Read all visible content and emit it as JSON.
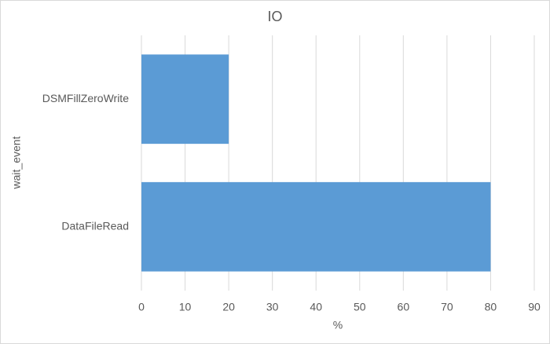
{
  "chart_data": {
    "type": "barh",
    "title": "IO",
    "x_label": "%",
    "y_label": "wait_event",
    "categories": [
      "DataFileRead",
      "DSMFillZeroWrite"
    ],
    "values": [
      80,
      20
    ],
    "color": "#5b9bd5",
    "xlim": [
      0,
      90
    ],
    "xticks": [
      0,
      10,
      20,
      30,
      40,
      50,
      60,
      70,
      80,
      90
    ],
    "grid": true
  }
}
